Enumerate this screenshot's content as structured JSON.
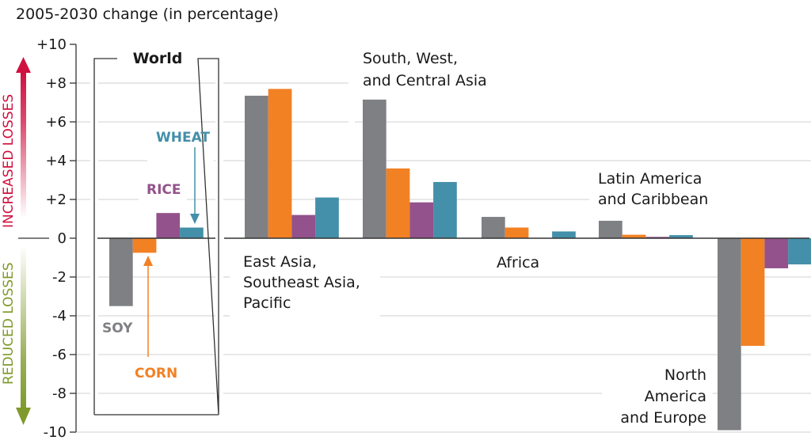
{
  "chart_data": {
    "type": "bar",
    "title": "2005-2030 change (in percentage)",
    "xlabel": "",
    "ylabel": "2005-2030 change (in percentage)",
    "ylim": [
      -10,
      10
    ],
    "yticks": [
      10,
      8,
      6,
      4,
      2,
      0,
      -2,
      -4,
      -6,
      -8,
      -10
    ],
    "ytick_labels": [
      "+10",
      "+8",
      "+6",
      "+4",
      "+2",
      "0",
      "-2",
      "-4",
      "-6",
      "-8",
      "-10"
    ],
    "grid": true,
    "side_labels": {
      "up": "INCREASED LOSSES",
      "down": "REDUCED LOSSES"
    },
    "colors": {
      "Soy": "#7f8084",
      "Corn": "#f28124",
      "Rice": "#93528b",
      "Wheat": "#448fa9",
      "up_arrow": "#d0103f",
      "down_arrow": "#7f9a2c"
    },
    "categories": [
      "World",
      "East Asia, Southeast Asia, Pacific",
      "South, West, and Central Asia",
      "Africa",
      "Latin America and Caribbean",
      "North America and Europe"
    ],
    "category_labels": [
      [
        "World"
      ],
      [
        "East Asia,",
        "Southeast Asia,",
        "Pacific"
      ],
      [
        "South, West,",
        "and Central Asia"
      ],
      [
        "Africa"
      ],
      [
        "Latin America",
        "and Caribbean"
      ],
      [
        "North",
        "America",
        "and Europe"
      ]
    ],
    "series": [
      {
        "name": "Soy",
        "label": "SOY",
        "values": [
          -3.5,
          7.35,
          7.15,
          1.1,
          0.9,
          -9.9
        ]
      },
      {
        "name": "Corn",
        "label": "CORN",
        "values": [
          -0.75,
          7.7,
          3.6,
          0.55,
          0.18,
          -5.55
        ]
      },
      {
        "name": "Rice",
        "label": "RICE",
        "values": [
          1.3,
          1.2,
          1.85,
          0.0,
          0.07,
          -1.55
        ]
      },
      {
        "name": "Wheat",
        "label": "WHEAT",
        "values": [
          0.55,
          2.1,
          2.9,
          0.35,
          0.16,
          -1.35
        ]
      }
    ]
  }
}
